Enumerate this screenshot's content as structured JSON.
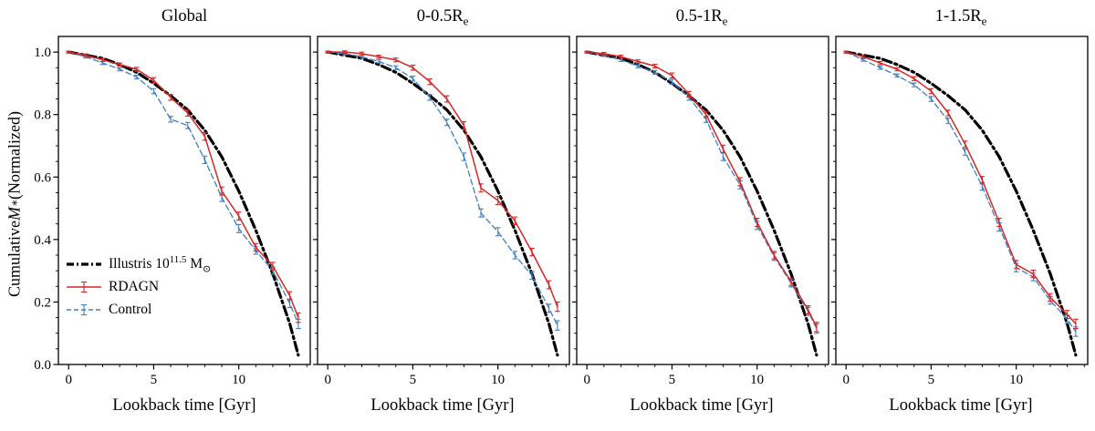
{
  "figure": {
    "ylabel": "Cumulative M∗ (Normalized)",
    "ylabel_parts": {
      "prefix": "Cumulative ",
      "var": "M",
      "sub": "∗",
      "suffix": " (Normalized)"
    },
    "xlabel": "Lookback time [Gyr]",
    "axes": {
      "xlim": [
        -0.6,
        14.2
      ],
      "ylim": [
        0,
        1.05
      ],
      "xticks": [
        0,
        5,
        10
      ],
      "yticks": [
        0,
        0.2,
        0.4,
        0.6,
        0.8,
        1.0
      ],
      "ytick_labels": [
        "0.0",
        "0.2",
        "0.4",
        "0.6",
        "0.8",
        "1.0"
      ],
      "xminor_step": 1,
      "yminor_step": 0.05,
      "grid": false
    },
    "colors": {
      "illustris": "#000000",
      "rdagn": "#d62728",
      "control": "#4080c0"
    }
  },
  "legend": {
    "position": "lower-left-first-panel",
    "items": [
      {
        "id": "illustris",
        "label": "Illustris 10^11.5 M⊙",
        "label_pre": "Illustris 10",
        "label_sup": "11.5",
        "label_mid": " M",
        "label_sub": "⊙",
        "color": "#000000",
        "style": "dashdot"
      },
      {
        "id": "rdagn",
        "label": "RDAGN",
        "color": "#d62728",
        "style": "solid-errorbar"
      },
      {
        "id": "control",
        "label": "Control",
        "color": "#4080c0",
        "style": "dashed-errorbar"
      }
    ]
  },
  "chart_data": [
    {
      "type": "line",
      "title": "Global",
      "title_main": "Global",
      "title_sub": "",
      "xlabel": "Lookback time [Gyr]",
      "ylabel": "Cumulative M* (Normalized)",
      "x": [
        0,
        1,
        2,
        3,
        4,
        5,
        6,
        7,
        8,
        9,
        10,
        11,
        12,
        13,
        13.5
      ],
      "series": [
        {
          "id": "illustris",
          "name": "Illustris 10^11.5 M⊙",
          "color": "#000000",
          "linestyle": "dashdot",
          "width": 3.2,
          "y": [
            1.0,
            0.99,
            0.98,
            0.96,
            0.935,
            0.9,
            0.86,
            0.815,
            0.75,
            0.665,
            0.555,
            0.43,
            0.29,
            0.13,
            0.03
          ]
        },
        {
          "id": "control",
          "name": "Control",
          "color": "#4080c0",
          "linestyle": "dashed",
          "width": 1.3,
          "y": [
            1.0,
            0.985,
            0.965,
            0.945,
            0.92,
            0.875,
            0.785,
            0.765,
            0.655,
            0.535,
            0.435,
            0.365,
            0.3,
            0.195,
            0.13
          ],
          "err": [
            0.003,
            0.004,
            0.005,
            0.005,
            0.006,
            0.008,
            0.009,
            0.01,
            0.012,
            0.013,
            0.013,
            0.012,
            0.012,
            0.013,
            0.015
          ]
        },
        {
          "id": "rdagn",
          "name": "RDAGN",
          "color": "#d62728",
          "linestyle": "solid",
          "width": 1.5,
          "y": [
            1.0,
            0.99,
            0.975,
            0.96,
            0.945,
            0.91,
            0.855,
            0.805,
            0.73,
            0.555,
            0.475,
            0.375,
            0.315,
            0.22,
            0.15
          ],
          "err": [
            0.003,
            0.004,
            0.005,
            0.005,
            0.006,
            0.008,
            0.009,
            0.01,
            0.012,
            0.013,
            0.013,
            0.012,
            0.012,
            0.013,
            0.015
          ]
        }
      ]
    },
    {
      "type": "line",
      "title": "0-0.5Re",
      "title_main": "0-0.5R",
      "title_sub": "e",
      "xlabel": "Lookback time [Gyr]",
      "ylabel": "Cumulative M* (Normalized)",
      "x": [
        0,
        1,
        2,
        3,
        4,
        5,
        6,
        7,
        8,
        9,
        10,
        11,
        12,
        13,
        13.5
      ],
      "series": [
        {
          "id": "illustris",
          "name": "Illustris 10^11.5 M⊙",
          "color": "#000000",
          "linestyle": "dashdot",
          "width": 3.2,
          "y": [
            1.0,
            0.99,
            0.98,
            0.96,
            0.935,
            0.9,
            0.86,
            0.815,
            0.75,
            0.665,
            0.555,
            0.43,
            0.29,
            0.13,
            0.03
          ]
        },
        {
          "id": "control",
          "name": "Control",
          "color": "#4080c0",
          "linestyle": "dashed",
          "width": 1.3,
          "y": [
            1.0,
            0.995,
            0.985,
            0.97,
            0.95,
            0.915,
            0.855,
            0.775,
            0.665,
            0.485,
            0.425,
            0.35,
            0.285,
            0.18,
            0.125
          ],
          "err": [
            0.003,
            0.004,
            0.005,
            0.005,
            0.006,
            0.008,
            0.009,
            0.01,
            0.012,
            0.013,
            0.013,
            0.012,
            0.012,
            0.013,
            0.015
          ]
        },
        {
          "id": "rdagn",
          "name": "RDAGN",
          "color": "#d62728",
          "linestyle": "solid",
          "width": 1.5,
          "y": [
            1.0,
            1.0,
            0.995,
            0.985,
            0.975,
            0.95,
            0.905,
            0.85,
            0.765,
            0.565,
            0.525,
            0.46,
            0.36,
            0.255,
            0.185
          ],
          "err": [
            0.003,
            0.004,
            0.005,
            0.005,
            0.006,
            0.008,
            0.009,
            0.01,
            0.012,
            0.013,
            0.013,
            0.012,
            0.012,
            0.013,
            0.015
          ]
        }
      ]
    },
    {
      "type": "line",
      "title": "0.5-1Re",
      "title_main": "0.5-1R",
      "title_sub": "e",
      "xlabel": "Lookback time [Gyr]",
      "ylabel": "Cumulative M* (Normalized)",
      "x": [
        0,
        1,
        2,
        3,
        4,
        5,
        6,
        7,
        8,
        9,
        10,
        11,
        12,
        13,
        13.5
      ],
      "series": [
        {
          "id": "illustris",
          "name": "Illustris 10^11.5 M⊙",
          "color": "#000000",
          "linestyle": "dashdot",
          "width": 3.2,
          "y": [
            1.0,
            0.99,
            0.98,
            0.96,
            0.935,
            0.9,
            0.86,
            0.815,
            0.75,
            0.665,
            0.555,
            0.43,
            0.29,
            0.13,
            0.03
          ]
        },
        {
          "id": "control",
          "name": "Control",
          "color": "#4080c0",
          "linestyle": "dashed",
          "width": 1.3,
          "y": [
            1.0,
            0.99,
            0.975,
            0.955,
            0.935,
            0.905,
            0.855,
            0.785,
            0.665,
            0.575,
            0.445,
            0.345,
            0.26,
            0.17,
            0.115
          ],
          "err": [
            0.003,
            0.004,
            0.005,
            0.005,
            0.006,
            0.008,
            0.009,
            0.01,
            0.012,
            0.013,
            0.013,
            0.012,
            0.012,
            0.013,
            0.015
          ]
        },
        {
          "id": "rdagn",
          "name": "RDAGN",
          "color": "#d62728",
          "linestyle": "solid",
          "width": 1.5,
          "y": [
            1.0,
            0.995,
            0.985,
            0.97,
            0.955,
            0.925,
            0.865,
            0.8,
            0.69,
            0.585,
            0.455,
            0.35,
            0.265,
            0.175,
            0.12
          ],
          "err": [
            0.003,
            0.004,
            0.005,
            0.005,
            0.006,
            0.008,
            0.009,
            0.01,
            0.012,
            0.013,
            0.013,
            0.012,
            0.012,
            0.013,
            0.015
          ]
        }
      ]
    },
    {
      "type": "line",
      "title": "1-1.5Re",
      "title_main": "1-1.5R",
      "title_sub": "e",
      "xlabel": "Lookback time [Gyr]",
      "ylabel": "Cumulative M* (Normalized)",
      "x": [
        0,
        1,
        2,
        3,
        4,
        5,
        6,
        7,
        8,
        9,
        10,
        11,
        12,
        13,
        13.5
      ],
      "series": [
        {
          "id": "illustris",
          "name": "Illustris 10^11.5 M⊙",
          "color": "#000000",
          "linestyle": "dashdot",
          "width": 3.2,
          "y": [
            1.0,
            0.99,
            0.98,
            0.96,
            0.935,
            0.9,
            0.86,
            0.815,
            0.75,
            0.665,
            0.555,
            0.43,
            0.29,
            0.13,
            0.03
          ]
        },
        {
          "id": "control",
          "name": "Control",
          "color": "#4080c0",
          "linestyle": "dashed",
          "width": 1.3,
          "y": [
            1.0,
            0.975,
            0.95,
            0.925,
            0.895,
            0.85,
            0.78,
            0.68,
            0.57,
            0.44,
            0.31,
            0.28,
            0.205,
            0.145,
            0.105
          ],
          "err": [
            0.003,
            0.004,
            0.005,
            0.005,
            0.006,
            0.008,
            0.009,
            0.01,
            0.012,
            0.013,
            0.013,
            0.012,
            0.012,
            0.013,
            0.015
          ]
        },
        {
          "id": "rdagn",
          "name": "RDAGN",
          "color": "#d62728",
          "linestyle": "solid",
          "width": 1.5,
          "y": [
            1.0,
            0.985,
            0.965,
            0.945,
            0.915,
            0.875,
            0.805,
            0.705,
            0.59,
            0.455,
            0.32,
            0.29,
            0.215,
            0.16,
            0.13
          ],
          "err": [
            0.003,
            0.004,
            0.005,
            0.005,
            0.006,
            0.008,
            0.009,
            0.01,
            0.012,
            0.013,
            0.013,
            0.012,
            0.012,
            0.013,
            0.015
          ]
        }
      ]
    }
  ]
}
